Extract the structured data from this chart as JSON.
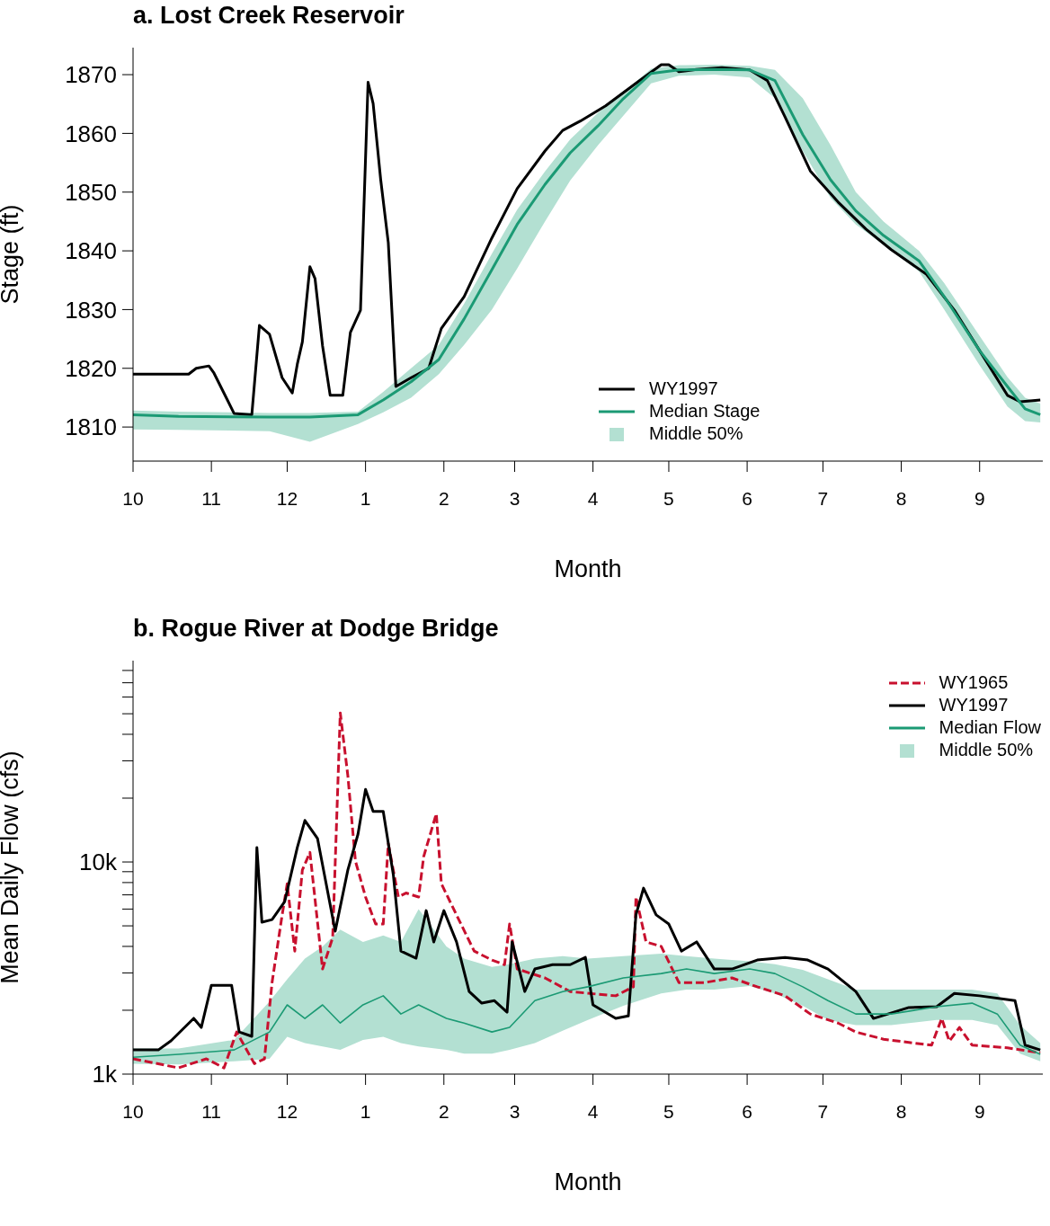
{
  "chart_data": [
    {
      "type": "line",
      "title": "a. Lost Creek Reservoir",
      "xlabel": "Month",
      "ylabel": "Stage (ft)",
      "xlim": [
        "1996-10-01",
        "1997-09-26"
      ],
      "ylim": [
        1804.2,
        1874.6
      ],
      "xticks": [
        {
          "value": "1996-10-01",
          "label": "10"
        },
        {
          "value": "1996-11-01",
          "label": "11"
        },
        {
          "value": "1996-12-01",
          "label": "12"
        },
        {
          "value": "1997-01-01",
          "label": "1"
        },
        {
          "value": "1997-02-01",
          "label": "2"
        },
        {
          "value": "1997-03-01",
          "label": "3"
        },
        {
          "value": "1997-04-01",
          "label": "4"
        },
        {
          "value": "1997-05-01",
          "label": "5"
        },
        {
          "value": "1997-06-01",
          "label": "6"
        },
        {
          "value": "1997-07-01",
          "label": "7"
        },
        {
          "value": "1997-08-01",
          "label": "8"
        },
        {
          "value": "1997-09-01",
          "label": "9"
        }
      ],
      "yticks": [
        1810,
        1820,
        1830,
        1840,
        1850,
        1860,
        1870
      ],
      "legend": "bottom",
      "annotations": [
        "Middle 50%"
      ],
      "series": [
        {
          "name": "WY1997",
          "color": "#000000",
          "x": [
            "1996-10-01",
            "1996-10-23",
            "1996-10-26",
            "1996-10-31",
            "1996-11-02",
            "1996-11-10",
            "1996-11-17",
            "1996-11-20",
            "1996-11-24",
            "1996-11-29",
            "1996-12-03",
            "1996-12-05",
            "1996-12-07",
            "1996-12-10",
            "1996-12-12",
            "1996-12-15",
            "1996-12-18",
            "1996-12-23",
            "1996-12-26",
            "1996-12-30",
            "1997-01-02",
            "1997-01-04",
            "1997-01-07",
            "1997-01-10",
            "1997-01-13",
            "1997-01-19",
            "1997-01-26",
            "1997-01-31",
            "1997-02-09",
            "1997-02-20",
            "1997-03-02",
            "1997-03-13",
            "1997-03-20",
            "1997-03-27",
            "1997-04-06",
            "1997-04-17",
            "1997-04-28",
            "1997-05-01",
            "1997-05-05",
            "1997-05-12",
            "1997-05-22",
            "1997-06-02",
            "1997-06-09",
            "1997-06-16",
            "1997-06-26",
            "1997-07-07",
            "1997-07-18",
            "1997-07-28",
            "1997-08-11",
            "1997-08-22",
            "1997-09-01",
            "1997-09-12",
            "1997-09-17",
            "1997-09-25"
          ],
          "values": [
            1819,
            1819,
            1820,
            1820.4,
            1819.2,
            1812.3,
            1812.1,
            1827.3,
            1825.8,
            1818.4,
            1815.8,
            1820.7,
            1824.5,
            1837.3,
            1835.3,
            1823.8,
            1815.4,
            1815.4,
            1826.1,
            1829.9,
            1868.7,
            1865.1,
            1852.1,
            1841.4,
            1816.9,
            1818.4,
            1820,
            1826.8,
            1832.2,
            1842.2,
            1850.6,
            1857,
            1860.5,
            1862.1,
            1864.7,
            1868.2,
            1871.7,
            1871.7,
            1870.5,
            1870.9,
            1871.2,
            1870.8,
            1869,
            1862.8,
            1853.6,
            1848.3,
            1843.7,
            1840.2,
            1836,
            1829.9,
            1823,
            1815.4,
            1814.3,
            1814.6
          ]
        },
        {
          "name": "Median Stage",
          "color": "#1b9a74",
          "x": [
            "1996-10-01",
            "1996-10-19",
            "1996-11-24",
            "1996-12-10",
            "1996-12-29",
            "1997-01-08",
            "1997-01-19",
            "1997-01-30",
            "1997-02-09",
            "1997-02-20",
            "1997-03-02",
            "1997-03-13",
            "1997-03-23",
            "1997-04-03",
            "1997-04-13",
            "1997-04-24",
            "1997-05-05",
            "1997-05-19",
            "1997-06-02",
            "1997-06-12",
            "1997-06-23",
            "1997-07-04",
            "1997-07-14",
            "1997-07-25",
            "1997-08-08",
            "1997-08-18",
            "1997-09-01",
            "1997-09-12",
            "1997-09-19",
            "1997-09-25"
          ],
          "values": [
            1812.1,
            1811.8,
            1811.7,
            1811.7,
            1812.1,
            1814.6,
            1817.7,
            1821.5,
            1828.4,
            1836.8,
            1844.5,
            1851.3,
            1856.7,
            1861.3,
            1865.9,
            1870.2,
            1870.8,
            1870.9,
            1870.8,
            1869,
            1859.8,
            1852.1,
            1846.8,
            1842.6,
            1838.3,
            1832.2,
            1823,
            1816.9,
            1813.1,
            1812.1
          ],
          "lower": [
            1809.6,
            1809.5,
            1809.3,
            1807.5,
            1810.5,
            1812.5,
            1815,
            1819,
            1824,
            1830,
            1837,
            1845,
            1852,
            1858,
            1863,
            1868.5,
            1869.8,
            1870,
            1869.5,
            1866,
            1857,
            1849,
            1844.5,
            1841,
            1836.5,
            1830,
            1820.5,
            1813.5,
            1811,
            1810.8
          ],
          "upper": [
            1812.8,
            1812.6,
            1812.4,
            1812.4,
            1812.6,
            1816,
            1820,
            1824,
            1831,
            1839.5,
            1847,
            1853.5,
            1859,
            1863.5,
            1867,
            1871,
            1871.6,
            1871.7,
            1871.5,
            1870.8,
            1866,
            1858,
            1850,
            1845,
            1840,
            1834.5,
            1825.5,
            1818.5,
            1815,
            1814
          ]
        }
      ]
    },
    {
      "type": "line",
      "title": "b. Rogue River at Dodge Bridge",
      "xlabel": "Month",
      "ylabel": "Mean Daily Flow (cfs)",
      "xlim": [
        "1996-10-01",
        "1997-09-26"
      ],
      "ylim": [
        1000,
        89000
      ],
      "log": "y",
      "xticks": [
        {
          "value": "1996-10-01",
          "label": "10"
        },
        {
          "value": "1996-11-01",
          "label": "11"
        },
        {
          "value": "1996-12-01",
          "label": "12"
        },
        {
          "value": "1997-01-01",
          "label": "1"
        },
        {
          "value": "1997-02-01",
          "label": "2"
        },
        {
          "value": "1997-03-01",
          "label": "3"
        },
        {
          "value": "1997-04-01",
          "label": "4"
        },
        {
          "value": "1997-05-01",
          "label": "5"
        },
        {
          "value": "1997-06-01",
          "label": "6"
        },
        {
          "value": "1997-07-01",
          "label": "7"
        },
        {
          "value": "1997-08-01",
          "label": "8"
        },
        {
          "value": "1997-09-01",
          "label": "9"
        }
      ],
      "yticks": [
        {
          "value": 1000,
          "label": "1k"
        },
        {
          "value": 2000,
          "label": null
        },
        {
          "value": 3000,
          "label": null
        },
        {
          "value": 4000,
          "label": null
        },
        {
          "value": 5000,
          "label": null
        },
        {
          "value": 6000,
          "label": null
        },
        {
          "value": 7000,
          "label": null
        },
        {
          "value": 8000,
          "label": null
        },
        {
          "value": 9000,
          "label": null
        },
        {
          "value": 10000,
          "label": "10k"
        },
        {
          "value": 20000,
          "label": null
        },
        {
          "value": 30000,
          "label": null
        },
        {
          "value": 40000,
          "label": null
        },
        {
          "value": 50000,
          "label": null
        },
        {
          "value": 60000,
          "label": null
        },
        {
          "value": 70000,
          "label": null
        },
        {
          "value": 80000,
          "label": null
        }
      ],
      "legend": "top right",
      "annotations": [
        "Middle 50%"
      ],
      "series": [
        {
          "name": "WY1965",
          "line_style": "dashed",
          "color": "#c8102e",
          "x": [
            "1996-10-01",
            "1996-10-19",
            "1996-10-30",
            "1996-11-06",
            "1996-11-11",
            "1996-11-18",
            "1996-11-22",
            "1996-11-25",
            "1996-11-29",
            "1996-12-01",
            "1996-12-04",
            "1996-12-07",
            "1996-12-10",
            "1996-12-15",
            "1996-12-19",
            "1996-12-22",
            "1996-12-25",
            "1996-12-28",
            "1997-01-01",
            "1997-01-05",
            "1997-01-08",
            "1997-01-10",
            "1997-01-14",
            "1997-01-17",
            "1997-01-22",
            "1997-01-24",
            "1997-01-29",
            "1997-01-31",
            "1997-02-06",
            "1997-02-13",
            "1997-02-20",
            "1997-02-25",
            "1997-02-27",
            "1997-03-02",
            "1997-03-13",
            "1997-03-23",
            "1997-04-03",
            "1997-04-10",
            "1997-04-17",
            "1997-04-18",
            "1997-04-22",
            "1997-04-28",
            "1997-05-05",
            "1997-05-15",
            "1997-05-26",
            "1997-06-05",
            "1997-06-16",
            "1997-06-26",
            "1997-07-07",
            "1997-07-14",
            "1997-07-25",
            "1997-08-04",
            "1997-08-13",
            "1997-08-17",
            "1997-08-20",
            "1997-08-24",
            "1997-08-29",
            "1997-09-12",
            "1997-09-25"
          ],
          "values": [
            1180,
            1070,
            1180,
            1070,
            1580,
            1120,
            1180,
            2700,
            5630,
            7900,
            3800,
            9170,
            11100,
            3130,
            4400,
            50400,
            25500,
            10100,
            6840,
            5100,
            5100,
            12200,
            6840,
            7140,
            6840,
            10600,
            16900,
            7900,
            5630,
            3800,
            3450,
            3280,
            5100,
            3130,
            2840,
            2450,
            2380,
            2340,
            2580,
            6840,
            4200,
            4000,
            2700,
            2700,
            2840,
            2580,
            2340,
            1920,
            1740,
            1580,
            1460,
            1410,
            1370,
            1830,
            1430,
            1660,
            1370,
            1330,
            1260
          ]
        },
        {
          "name": "WY1997",
          "color": "#000000",
          "x": [
            "1996-10-01",
            "1996-10-11",
            "1996-10-16",
            "1996-10-25",
            "1996-10-28",
            "1996-11-01",
            "1996-11-09",
            "1996-11-12",
            "1996-11-17",
            "1996-11-19",
            "1996-11-21",
            "1996-11-25",
            "1996-11-30",
            "1996-12-05",
            "1996-12-08",
            "1996-12-13",
            "1996-12-20",
            "1996-12-25",
            "1996-12-29",
            "1997-01-01",
            "1997-01-04",
            "1997-01-08",
            "1997-01-12",
            "1997-01-15",
            "1997-01-21",
            "1997-01-25",
            "1997-01-28",
            "1997-02-01",
            "1997-02-06",
            "1997-02-11",
            "1997-02-16",
            "1997-02-21",
            "1997-02-26",
            "1997-02-28",
            "1997-03-05",
            "1997-03-09",
            "1997-03-16",
            "1997-03-23",
            "1997-03-29",
            "1997-04-01",
            "1997-04-10",
            "1997-04-15",
            "1997-04-18",
            "1997-04-21",
            "1997-04-26",
            "1997-05-01",
            "1997-05-06",
            "1997-05-12",
            "1997-05-19",
            "1997-05-26",
            "1997-06-05",
            "1997-06-16",
            "1997-06-25",
            "1997-07-03",
            "1997-07-14",
            "1997-07-21",
            "1997-08-04",
            "1997-08-15",
            "1997-08-22",
            "1997-09-01",
            "1997-09-15",
            "1997-09-19",
            "1997-09-25"
          ],
          "values": [
            1300,
            1300,
            1435,
            1832,
            1660,
            2624,
            2624,
            1581,
            1506,
            11700,
            5200,
            5350,
            6500,
            11700,
            15700,
            12900,
            4720,
            9170,
            13500,
            22000,
            17300,
            17300,
            8700,
            3800,
            3520,
            5900,
            4200,
            5900,
            4200,
            2450,
            2160,
            2220,
            1960,
            4200,
            2450,
            3130,
            3280,
            3280,
            3550,
            2120,
            1830,
            1880,
            5630,
            7530,
            5630,
            5100,
            3800,
            4200,
            3130,
            3130,
            3450,
            3550,
            3450,
            3130,
            2450,
            1830,
            2060,
            2080,
            2400,
            2340,
            2220,
            1370,
            1300
          ]
        },
        {
          "name": "Median Flow",
          "color": "#1b9a74",
          "x": [
            "1996-10-01",
            "1996-10-19",
            "1996-11-10",
            "1996-11-24",
            "1996-12-01",
            "1996-12-08",
            "1996-12-15",
            "1996-12-22",
            "1996-12-31",
            "1997-01-08",
            "1997-01-15",
            "1997-01-22",
            "1997-02-02",
            "1997-02-09",
            "1997-02-20",
            "1997-02-27",
            "1997-03-09",
            "1997-03-20",
            "1997-03-30",
            "1997-04-13",
            "1997-04-28",
            "1997-05-08",
            "1997-05-19",
            "1997-06-02",
            "1997-06-12",
            "1997-06-23",
            "1997-07-03",
            "1997-07-14",
            "1997-07-28",
            "1997-08-15",
            "1997-08-29",
            "1997-09-08",
            "1997-09-17",
            "1997-09-25"
          ],
          "values": [
            1200,
            1240,
            1300,
            1580,
            2120,
            1830,
            2120,
            1740,
            2120,
            2340,
            1920,
            2120,
            1830,
            1740,
            1580,
            1660,
            2220,
            2450,
            2580,
            2840,
            2980,
            3130,
            2980,
            3130,
            2980,
            2580,
            2220,
            1920,
            1920,
            2080,
            2160,
            1920,
            1370,
            1240
          ],
          "lower": [
            1120,
            1110,
            1150,
            1180,
            1500,
            1400,
            1350,
            1300,
            1450,
            1500,
            1400,
            1350,
            1300,
            1250,
            1250,
            1300,
            1400,
            1600,
            1800,
            2100,
            2400,
            2500,
            2500,
            2600,
            2400,
            2100,
            1800,
            1700,
            1700,
            1800,
            1800,
            1700,
            1250,
            1150
          ],
          "upper": [
            1320,
            1320,
            1450,
            2200,
            2800,
            3500,
            4000,
            4800,
            4200,
            4500,
            4200,
            6000,
            4000,
            3500,
            3200,
            3300,
            3500,
            3600,
            3500,
            3600,
            3700,
            3600,
            3500,
            3400,
            3300,
            3100,
            2800,
            2500,
            2500,
            2500,
            2500,
            2400,
            1700,
            1400
          ]
        }
      ]
    }
  ]
}
